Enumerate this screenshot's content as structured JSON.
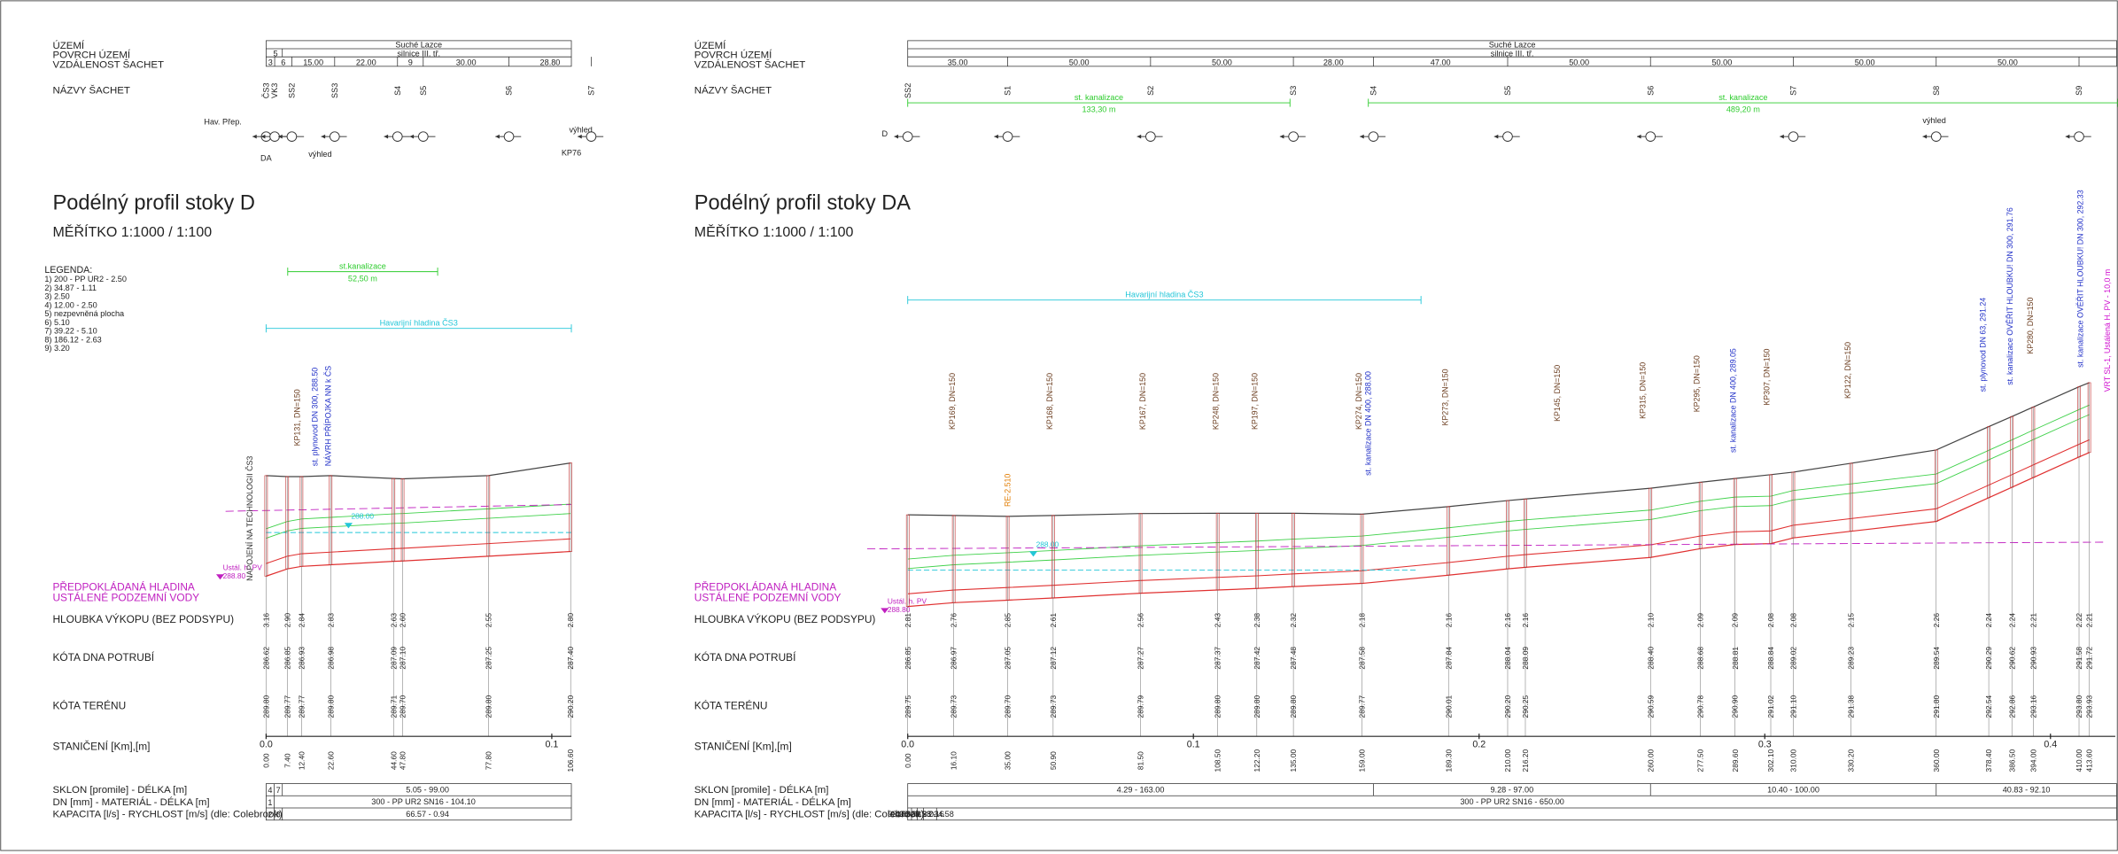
{
  "profiles": [
    {
      "header": {
        "territory_label": "ÚZEMÍ",
        "surface_label": "POVRCH ÚZEMÍ",
        "distance_label": "VZDÁLENOST ŠACHET",
        "names_label": "NÁZVY ŠACHET",
        "territory": "Suché Lazce",
        "surface": "silnice III. tř.",
        "surface_note": "5",
        "distances": [
          "3",
          "6",
          "15.00",
          "22.00",
          "9",
          "30.00",
          "28.80"
        ],
        "shafts": [
          "ČS3",
          "VK3",
          "SS2",
          "SS3",
          "S4",
          "S5",
          "S6",
          "S7"
        ]
      },
      "symbol_labels": [
        "Hav. Přep.",
        "DA",
        "výhled",
        "výhled",
        "KP76"
      ],
      "title": "Podélný profil stoky D",
      "scale": "MĚŘÍTKO 1:1000 / 1:100",
      "legend": {
        "title": "LEGENDA:",
        "items": [
          "1)  200 - PP UR2 - 2.50",
          "2)  34.87 - 1.11",
          "3)  2.50",
          "4)  12.00 - 2.50",
          "5)  nezpevněná plocha",
          "6)  5.10",
          "7)  39.22 - 5.10",
          "8)  186.12 - 2.63",
          "9)  3.20"
        ]
      },
      "spans": [
        {
          "label": "st.kanalizace",
          "length": "52,50 m"
        }
      ],
      "emergency_level": "Havarijní hladina ČS3",
      "annotations": [
        "KP131, DN=150",
        "st. plynovod DN 300, 288.50",
        "NÁVRH PŘÍPOJKA NN k ČS",
        "NAPOJENÍ NA TECHNOLOGII ČS3"
      ],
      "water_level": "288.00",
      "groundwater": {
        "label": "Ustál. h. PV",
        "level": "288.80"
      },
      "rows": {
        "groundwater_1": "PŘEDPOKLÁDANÁ HLADINA",
        "groundwater_2": "USTÁLENÉ PODZEMNÍ VODY",
        "depth": "HLOUBKA VÝKOPU (BEZ PODSYPU)",
        "invert": "KÓTA DNA POTRUBÍ",
        "terrain": "KÓTA TERÉNU",
        "station": "STANIČENÍ [Km],[m]"
      },
      "stations": [
        "0.00",
        "7.40",
        "12.40",
        "22.60",
        "44.60",
        "47.80",
        "77.80",
        "106.60"
      ],
      "depths": [
        "3.16",
        "2.90",
        "2.84",
        "2.83",
        "2.63",
        "2.60",
        "2.55",
        "2.80"
      ],
      "invert": [
        "286.62",
        "286.85",
        "286.93",
        "286.98",
        "287.09",
        "287.10",
        "287.25",
        "287.40"
      ],
      "terrain": [
        "289.80",
        "289.77",
        "289.77",
        "289.80",
        "289.71",
        "289.70",
        "289.80",
        "290.20"
      ],
      "km_ticks": [
        "0.0",
        "0.1"
      ],
      "table": {
        "slope_label": "SKLON [promile] - DÉLKA [m]",
        "dn_label": "DN [mm] - MATERIÁL - DÉLKA [m]",
        "capacity_label": "KAPACITA [l/s] - RYCHLOST [m/s] (dle: Colebrook)",
        "slope_codes": [
          "4",
          "7"
        ],
        "dn_codes": [
          "1"
        ],
        "capacity_codes": [
          "2",
          "8"
        ],
        "slope": [
          "5.05 - 99.00"
        ],
        "dn": [
          "300 - PP UR2 SN16 - 104.10"
        ],
        "capacity": [
          "66.57 - 0.94"
        ]
      }
    },
    {
      "header": {
        "territory_label": "ÚZEMÍ",
        "surface_label": "POVRCH ÚZEMÍ",
        "distance_label": "VZDÁLENOST ŠACHET",
        "names_label": "NÁZVY ŠACHET",
        "territory": "Suché Lazce",
        "surface": "silnice III. tř.",
        "distances": [
          "35.00",
          "50.00",
          "50.00",
          "28.00",
          "47.00",
          "50.00",
          "50.00",
          "50.00",
          "50.00"
        ],
        "shafts": [
          "SS2",
          "S1",
          "S2",
          "S3",
          "S4",
          "S5",
          "S6",
          "S7",
          "S8",
          "S9"
        ]
      },
      "symbol_labels": [
        "D",
        "výhled"
      ],
      "title": "Podélný profil stoky DA",
      "scale": "MĚŘÍTKO 1:1000 / 1:100",
      "spans": [
        {
          "label": "st. kanalizace",
          "length": "133,30 m"
        },
        {
          "label": "st. kanalizace",
          "length": "489,20 m"
        }
      ],
      "emergency_level": "Havarijní hladina ČS3",
      "annotations": [
        "KP169, DN=150",
        "RE-2.510",
        "KP168, DN=150",
        "KP167, DN=150",
        "KP248, DN=150",
        "KP197, DN=150",
        "KP274, DN=150",
        "st. kanalizace DN 400, 288.00",
        "KP273, DN=150",
        "KP145, DN=150",
        "KP315, DN=150",
        "KP295, DN=150",
        "st. kanalizace DN 400, 289.05",
        "KP307, DN=150",
        "KP122, DN=150",
        "st. plynovod DN 63, 291.24",
        "st. kanalizace OVĚŘIT HLOUBKU! DN 300, 291.76",
        "KP280, DN=150",
        "st. kanalizace OVĚŘIT HLOUBKU! DN 300, 292.33",
        "VRT SL-1, Ustálená H. PV - 10,0 m"
      ],
      "water_level": "288.00",
      "groundwater": {
        "label": "Ustál. h. PV",
        "level": "288.80"
      },
      "rows": {
        "groundwater_1": "PŘEDPOKLÁDANÁ HLADINA",
        "groundwater_2": "USTÁLENÉ PODZEMNÍ VODY",
        "depth": "HLOUBKA VÝKOPU (BEZ PODSYPU)",
        "invert": "KÓTA DNA POTRUBÍ",
        "terrain": "KÓTA TERÉNU",
        "station": "STANIČENÍ [Km],[m]"
      },
      "stations": [
        "0.00",
        "16.10",
        "35.00",
        "50.90",
        "81.50",
        "108.50",
        "122.20",
        "135.00",
        "159.00",
        "189.30",
        "210.00",
        "216.20",
        "260.00",
        "277.50",
        "289.60",
        "302.10",
        "310.00",
        "330.20",
        "360.00",
        "378.40",
        "386.50",
        "394.00",
        "410.00",
        "413.60"
      ],
      "depths": [
        "2.81",
        "2.76",
        "2.85",
        "2.61",
        "2.56",
        "2.43",
        "2.38",
        "2.32",
        "2.18",
        "2.16",
        "2.16",
        "2.16",
        "2.10",
        "2.09",
        "2.09",
        "2.08",
        "2.08",
        "2.15",
        "2.26",
        "2.24",
        "2.24",
        "2.21",
        "2.22",
        "2.21"
      ],
      "invert": [
        "286.85",
        "286.97",
        "287.05",
        "287.12",
        "287.27",
        "287.37",
        "287.42",
        "287.48",
        "287.58",
        "287.84",
        "288.04",
        "288.09",
        "288.40",
        "288.68",
        "288.81",
        "288.84",
        "289.02",
        "289.23",
        "289.54",
        "290.29",
        "290.62",
        "290.93",
        "291.58",
        "291.72"
      ],
      "terrain": [
        "289.75",
        "289.73",
        "289.70",
        "289.73",
        "289.79",
        "289.80",
        "289.80",
        "289.80",
        "289.77",
        "290.01",
        "290.20",
        "290.25",
        "290.59",
        "290.78",
        "290.90",
        "291.02",
        "291.10",
        "291.38",
        "291.80",
        "292.54",
        "292.86",
        "293.16",
        "293.80",
        "293.93"
      ],
      "km_ticks": [
        "0.0",
        "0.1",
        "0.2",
        "0.3",
        "0.4"
      ],
      "table": {
        "slope_label": "SKLON [promile] - DÉLKA [m]",
        "dn_label": "DN [mm] - MATERIÁL - DÉLKA [m]",
        "capacity_label": "KAPACITA [l/s] - RYCHLOST [m/s] (dle: Colebrook)",
        "slope": [
          "4.29 - 163.00",
          "9.28 - 97.00",
          "10.40 - 100.00",
          "40.83 - 92.10"
        ],
        "dn": [
          "300 - PP UR2 SN16 - 650.00"
        ],
        "capacity": [
          "93.96 - 1.33",
          "143.63 - 2.03",
          "152.93 - 2.16",
          "323.58 - 4.58"
        ]
      }
    }
  ]
}
